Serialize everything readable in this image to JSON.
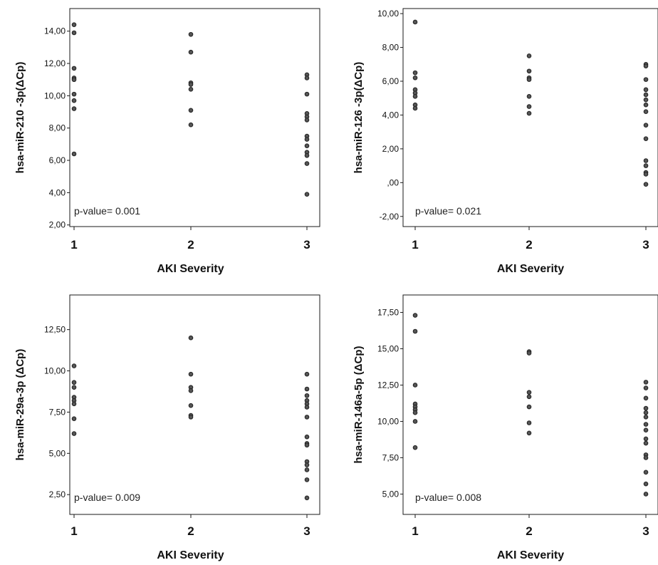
{
  "chart_data": [
    {
      "type": "scatter",
      "ylabel": "hsa-miR-210 -3p(ΔCp)",
      "xlabel": "AKI Severity",
      "annotation": "p-value= 0.001",
      "categories": [
        "1",
        "2",
        "3"
      ],
      "yticks": [
        "2,00",
        "4,00",
        "6,00",
        "8,00",
        "10,00",
        "12,00",
        "14,00"
      ],
      "ytick_values": [
        2,
        4,
        6,
        8,
        10,
        12,
        14
      ],
      "ylim": [
        1.9,
        15.4
      ],
      "series": [
        {
          "x": 1,
          "values": [
            14.4,
            13.9,
            11.7,
            11.1,
            11.0,
            10.1,
            9.7,
            9.2,
            6.4
          ]
        },
        {
          "x": 2,
          "values": [
            13.8,
            12.7,
            10.8,
            10.7,
            10.4,
            9.1,
            8.2
          ]
        },
        {
          "x": 3,
          "values": [
            11.3,
            11.1,
            10.1,
            8.9,
            8.7,
            8.5,
            7.5,
            7.3,
            6.9,
            6.5,
            6.3,
            5.8,
            3.9
          ]
        }
      ]
    },
    {
      "type": "scatter",
      "ylabel": "hsa-miR-126 -3p(ΔCp)",
      "xlabel": "AKI Severity",
      "annotation": "p-value= 0.021",
      "categories": [
        "1",
        "2",
        "3"
      ],
      "yticks": [
        "-2,00",
        ",00",
        "2,00",
        "4,00",
        "6,00",
        "8,00",
        "10,00"
      ],
      "ytick_values": [
        -2,
        0,
        2,
        4,
        6,
        8,
        10
      ],
      "ylim": [
        -2.6,
        10.3
      ],
      "series": [
        {
          "x": 1,
          "values": [
            9.5,
            6.5,
            6.2,
            5.5,
            5.3,
            5.1,
            4.6,
            4.4
          ]
        },
        {
          "x": 2,
          "values": [
            7.5,
            6.6,
            6.2,
            6.1,
            5.1,
            4.5,
            4.1
          ]
        },
        {
          "x": 3,
          "values": [
            7.0,
            6.9,
            6.1,
            5.5,
            5.2,
            4.9,
            4.6,
            4.2,
            3.4,
            2.6,
            1.3,
            1.0,
            0.6,
            0.5,
            -0.1
          ]
        }
      ]
    },
    {
      "type": "scatter",
      "ylabel": "hsa-miR-29a-3p (ΔCp)",
      "xlabel": "AKI Severity",
      "annotation": "p-value= 0.009",
      "categories": [
        "1",
        "2",
        "3"
      ],
      "yticks": [
        "2,50",
        "5,00",
        "7,50",
        "10,00",
        "12,50"
      ],
      "ytick_values": [
        2.5,
        5,
        7.5,
        10,
        12.5
      ],
      "ylim": [
        1.3,
        14.6
      ],
      "series": [
        {
          "x": 1,
          "values": [
            10.3,
            9.3,
            9.0,
            8.4,
            8.2,
            8.0,
            7.1,
            6.2
          ]
        },
        {
          "x": 2,
          "values": [
            12.0,
            9.8,
            9.0,
            8.8,
            7.9,
            7.3,
            7.2
          ]
        },
        {
          "x": 3,
          "values": [
            9.8,
            8.9,
            8.5,
            8.2,
            8.0,
            7.8,
            7.2,
            6.0,
            5.6,
            5.5,
            4.5,
            4.3,
            4.0,
            3.4,
            2.3
          ]
        }
      ]
    },
    {
      "type": "scatter",
      "ylabel": "hsa-miR-146a-5p (ΔCp)",
      "xlabel": "AKI Severity",
      "annotation": "p-value= 0.008",
      "categories": [
        "1",
        "2",
        "3"
      ],
      "yticks": [
        "5,00",
        "7,50",
        "10,00",
        "12,50",
        "15,00",
        "17,50"
      ],
      "ytick_values": [
        5,
        7.5,
        10,
        12.5,
        15,
        17.5
      ],
      "ylim": [
        3.6,
        18.7
      ],
      "series": [
        {
          "x": 1,
          "values": [
            17.3,
            16.2,
            12.5,
            11.2,
            11.0,
            10.8,
            10.6,
            10.0,
            8.2
          ]
        },
        {
          "x": 2,
          "values": [
            14.8,
            14.7,
            12.0,
            11.7,
            11.0,
            9.9,
            9.2
          ]
        },
        {
          "x": 3,
          "values": [
            12.7,
            12.3,
            11.6,
            10.9,
            10.6,
            10.3,
            9.8,
            9.4,
            8.8,
            8.5,
            7.7,
            7.5,
            6.5,
            5.7,
            5.0
          ]
        }
      ]
    }
  ]
}
